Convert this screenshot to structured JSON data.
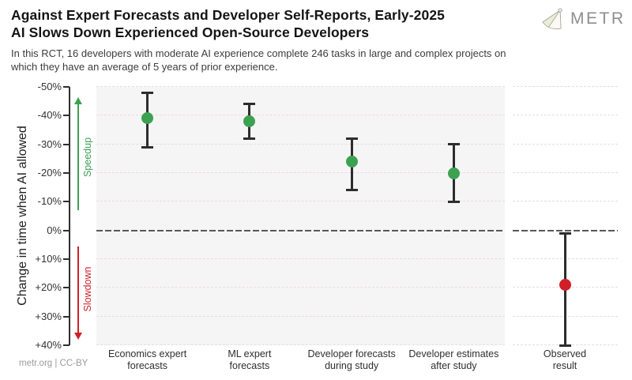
{
  "header": {
    "title_line1": "Against Expert Forecasts and Developer Self-Reports, Early-2025",
    "title_line2": "AI Slows Down Experienced Open-Source Developers",
    "subtitle": "In this RCT, 16 developers with moderate AI experience complete 246 tasks in large and complex projects on which they have an average of 5 years of prior experience.",
    "logo_text": "METR",
    "logo_icon": "metr-gem-icon"
  },
  "footer": {
    "credit": "metr.org  |  CC-BY"
  },
  "chart_data": {
    "type": "scatter",
    "title": "Against Expert Forecasts and Developer Self-Reports, Early-2025 AI Slows Down Experienced Open-Source Developers",
    "ylabel": "Change in time when AI allowed",
    "ylim": [
      -50,
      40
    ],
    "y_axis_inverted": true,
    "grid": "horizontal-dashed",
    "yticks": [
      {
        "value": -50,
        "label": "-50%"
      },
      {
        "value": -40,
        "label": "-40%"
      },
      {
        "value": -30,
        "label": "-30%"
      },
      {
        "value": -20,
        "label": "-20%"
      },
      {
        "value": -10,
        "label": "-10%"
      },
      {
        "value": 0,
        "label": "0%"
      },
      {
        "value": 10,
        "label": "+10%"
      },
      {
        "value": 20,
        "label": "+20%"
      },
      {
        "value": 30,
        "label": "+30%"
      },
      {
        "value": 40,
        "label": "+40%"
      }
    ],
    "points": [
      {
        "category": "Economics expert forecasts",
        "category_lines": [
          "Economics expert",
          "forecasts"
        ],
        "value": -39,
        "ci": [
          -48,
          -29
        ],
        "color": "#3da152",
        "panel": "main"
      },
      {
        "category": "ML expert forecasts",
        "category_lines": [
          "ML expert",
          "forecasts"
        ],
        "value": -38,
        "ci": [
          -44,
          -32
        ],
        "color": "#3da152",
        "panel": "main"
      },
      {
        "category": "Developer forecasts during study",
        "category_lines": [
          "Developer forecasts",
          "during study"
        ],
        "value": -24,
        "ci": [
          -32,
          -14
        ],
        "color": "#3da152",
        "panel": "main"
      },
      {
        "category": "Developer estimates after study",
        "category_lines": [
          "Developer estimates",
          "after study"
        ],
        "value": -20,
        "ci": [
          -30,
          -10
        ],
        "color": "#3da152",
        "panel": "main"
      },
      {
        "category": "Observed result",
        "category_lines": [
          "Observed",
          "result"
        ],
        "value": 19,
        "ci": [
          1,
          40
        ],
        "color": "#d11f27",
        "panel": "right"
      }
    ],
    "annotations": [
      {
        "name": "speedup-arrow",
        "label": "Speedup",
        "direction": "up",
        "color": "#3da152",
        "value_range": [
          -44,
          -7
        ]
      },
      {
        "name": "slowdown-arrow",
        "label": "Slowdown",
        "direction": "down",
        "color": "#cf2127",
        "value_range": [
          5.5,
          35.5
        ]
      }
    ],
    "colors": {
      "speedup": "#3da152",
      "slowdown": "#d11f27",
      "errorbar": "#2d2d2d",
      "panel_bg": "#f6f5f5",
      "gridline": "#e8dcdc",
      "zero_line": "#585858"
    }
  }
}
